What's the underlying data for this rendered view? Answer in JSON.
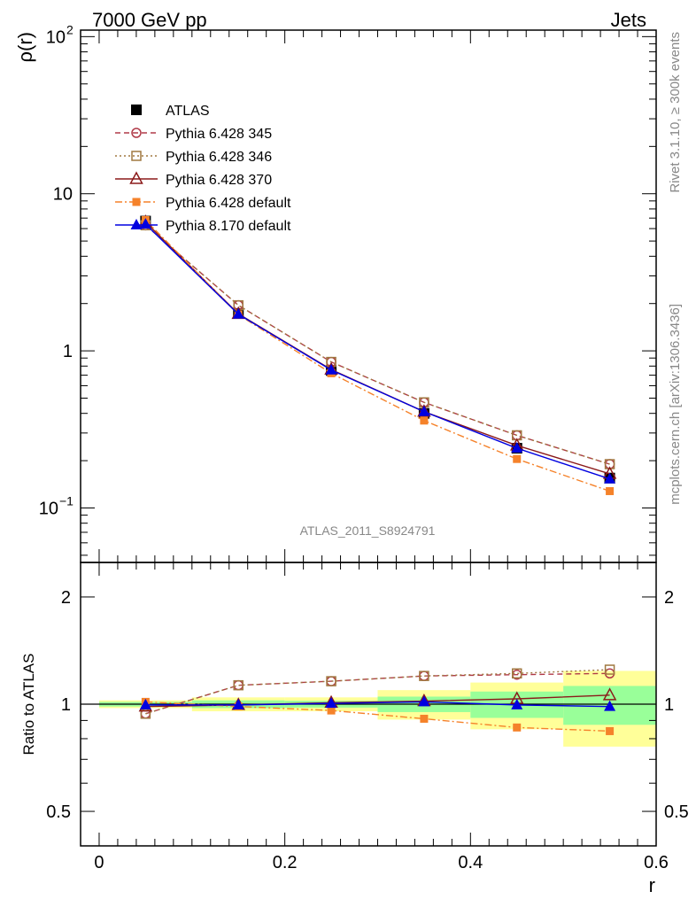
{
  "header": {
    "left_title": "7000 GeV pp",
    "right_title": "Jets"
  },
  "side_labels": {
    "rivet": "Rivet 3.1.10, ≥ 300k events",
    "mcplots": "mcplots.cern.ch [arXiv:1306.3436]"
  },
  "analysis_label": "ATLAS_2011_S8924791",
  "chart_data": [
    {
      "type": "line",
      "panel": "main",
      "ylabel": "ρ(r)",
      "yscale": "log",
      "ylim": [
        0.045,
        110
      ],
      "xlim": [
        -0.02,
        0.6
      ],
      "y_ticks": [
        {
          "v": 0.1,
          "base": "10",
          "exp": "−1"
        },
        {
          "v": 1,
          "base": "1",
          "exp": ""
        },
        {
          "v": 10,
          "base": "10",
          "exp": ""
        },
        {
          "v": 100,
          "base": "10",
          "exp": "2"
        }
      ],
      "legend_position": "top-left",
      "x": [
        0.05,
        0.15,
        0.25,
        0.35,
        0.45,
        0.55
      ],
      "series": [
        {
          "name": "ATLAS",
          "color": "#000000",
          "marker": "square-filled",
          "line": "none",
          "values": [
            6.7,
            1.73,
            0.75,
            0.4,
            0.24,
            0.155
          ]
        },
        {
          "name": "Pythia 6.428 345",
          "color": "#b03a48",
          "marker": "circle-open",
          "line": "dashed",
          "values": [
            6.3,
            1.95,
            0.85,
            0.47,
            0.29,
            0.19
          ]
        },
        {
          "name": "Pythia 6.428 346",
          "color": "#a07840",
          "marker": "square-open",
          "line": "dotted",
          "values": [
            6.3,
            1.95,
            0.85,
            0.47,
            0.29,
            0.19
          ]
        },
        {
          "name": "Pythia 6.428 370",
          "color": "#8b1a1a",
          "marker": "triangle-open",
          "line": "solid",
          "values": [
            6.6,
            1.72,
            0.76,
            0.41,
            0.25,
            0.165
          ]
        },
        {
          "name": "Pythia 6.428 default",
          "color": "#f5822a",
          "marker": "square-small",
          "line": "dashdot",
          "values": [
            6.8,
            1.7,
            0.72,
            0.36,
            0.205,
            0.128
          ]
        },
        {
          "name": "Pythia 8.170 default",
          "color": "#0000e0",
          "marker": "triangle-filled",
          "line": "solid",
          "values": [
            6.4,
            1.71,
            0.755,
            0.41,
            0.24,
            0.153
          ]
        }
      ]
    },
    {
      "type": "line",
      "panel": "ratio",
      "ylabel": "Ratio to ATLAS",
      "xlabel": "r",
      "yscale": "log",
      "ylim": [
        0.4,
        2.5
      ],
      "xlim": [
        -0.02,
        0.6
      ],
      "y_ticks": [
        {
          "v": 0.5,
          "label": "0.5"
        },
        {
          "v": 1,
          "label": "1"
        },
        {
          "v": 2,
          "label": "2"
        }
      ],
      "x_ticks": [
        {
          "v": 0,
          "label": "0"
        },
        {
          "v": 0.2,
          "label": "0.2"
        },
        {
          "v": 0.4,
          "label": "0.4"
        },
        {
          "v": 0.6,
          "label": "0.6"
        }
      ],
      "band_colors": {
        "outer": "#ffff99",
        "inner": "#99ff99"
      },
      "bands": [
        {
          "x0": 0.0,
          "x1": 0.1,
          "outer": [
            0.975,
            1.025
          ],
          "inner": [
            0.985,
            1.015
          ]
        },
        {
          "x0": 0.1,
          "x1": 0.2,
          "outer": [
            0.955,
            1.045
          ],
          "inner": [
            0.975,
            1.025
          ]
        },
        {
          "x0": 0.2,
          "x1": 0.3,
          "outer": [
            0.955,
            1.045
          ],
          "inner": [
            0.978,
            1.022
          ]
        },
        {
          "x0": 0.3,
          "x1": 0.4,
          "outer": [
            0.905,
            1.095
          ],
          "inner": [
            0.95,
            1.05
          ]
        },
        {
          "x0": 0.4,
          "x1": 0.5,
          "outer": [
            0.85,
            1.15
          ],
          "inner": [
            0.915,
            1.085
          ]
        },
        {
          "x0": 0.5,
          "x1": 0.6,
          "outer": [
            0.76,
            1.24
          ],
          "inner": [
            0.875,
            1.125
          ]
        }
      ],
      "x": [
        0.05,
        0.15,
        0.25,
        0.35,
        0.45,
        0.55
      ],
      "series": [
        {
          "name": "Pythia 6.428 345",
          "color": "#b03a48",
          "marker": "circle-open",
          "line": "dashed",
          "values": [
            0.94,
            1.13,
            1.16,
            1.2,
            1.21,
            1.22
          ]
        },
        {
          "name": "Pythia 6.428 346",
          "color": "#a07840",
          "marker": "square-open",
          "line": "dotted",
          "values": [
            0.94,
            1.13,
            1.16,
            1.2,
            1.22,
            1.25
          ]
        },
        {
          "name": "Pythia 6.428 370",
          "color": "#8b1a1a",
          "marker": "triangle-open",
          "line": "solid",
          "values": [
            0.985,
            0.995,
            1.01,
            1.02,
            1.035,
            1.06
          ]
        },
        {
          "name": "Pythia 6.428 default",
          "color": "#f5822a",
          "marker": "square-small",
          "line": "dashdot",
          "values": [
            1.015,
            0.985,
            0.96,
            0.91,
            0.86,
            0.84
          ]
        },
        {
          "name": "Pythia 8.170 default",
          "color": "#0000e0",
          "marker": "triangle-filled",
          "line": "solid",
          "values": [
            0.995,
            0.995,
            1.005,
            1.015,
            0.995,
            0.985
          ]
        }
      ]
    }
  ]
}
